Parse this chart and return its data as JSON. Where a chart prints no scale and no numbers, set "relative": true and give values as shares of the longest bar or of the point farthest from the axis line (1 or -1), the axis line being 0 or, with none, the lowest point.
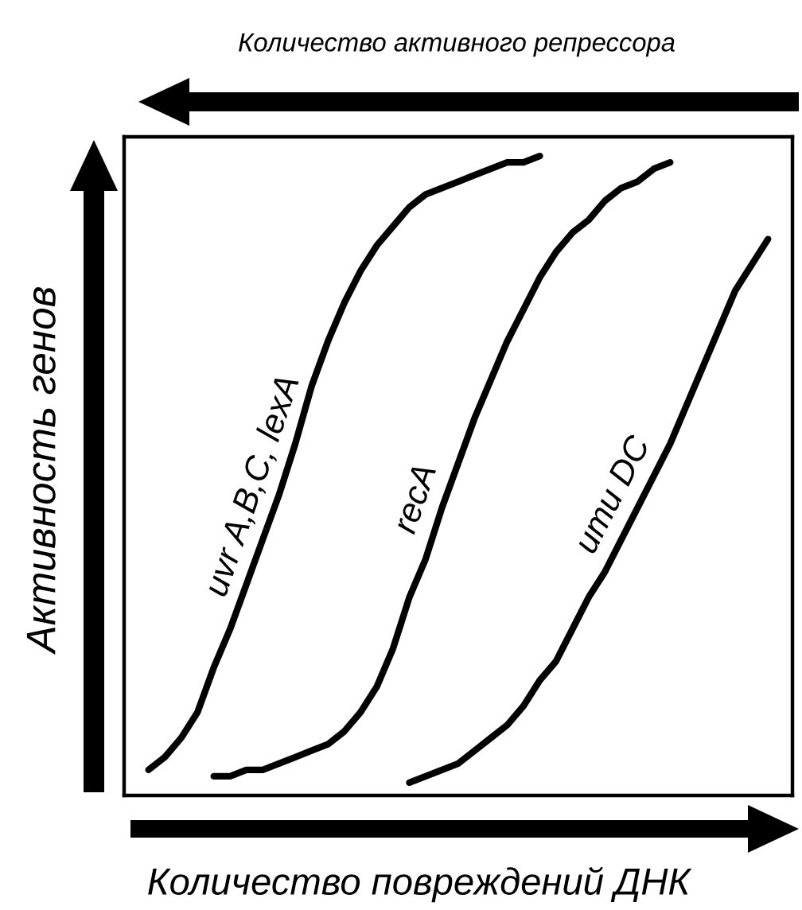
{
  "chart_data": {
    "type": "line",
    "relative": true,
    "xlabel": "Количество повреждений ДНК",
    "ylabel": "Активность генов",
    "x2label": "Количество активного репрессора",
    "categories": [
      null,
      null,
      null,
      null,
      null,
      null,
      null,
      null,
      null,
      null,
      null,
      null,
      null,
      null,
      null,
      null,
      null,
      null,
      null,
      null,
      null,
      null,
      null,
      null,
      null,
      null,
      null,
      null,
      null,
      null,
      null,
      null,
      null,
      null,
      null,
      null,
      null,
      null,
      null,
      null,
      null
    ],
    "series": [
      {
        "name": "uvr A,B,C, lexA",
        "color": "#000000",
        "values": [
          null,
          0.04,
          0.06,
          0.09,
          0.13,
          0.2,
          0.26,
          0.33,
          0.4,
          0.47,
          0.55,
          0.64,
          0.71,
          0.77,
          0.82,
          0.86,
          0.89,
          0.92,
          0.94,
          0.95,
          0.96,
          0.97,
          0.98,
          0.99,
          0.99,
          1.0,
          null,
          null,
          null,
          null,
          null,
          null,
          null,
          null,
          null,
          null,
          null,
          null,
          null,
          null,
          null
        ]
      },
      {
        "name": "recA",
        "color": "#000000",
        "values": [
          null,
          null,
          null,
          null,
          null,
          0.03,
          0.03,
          0.04,
          0.04,
          0.05,
          0.06,
          0.07,
          0.08,
          0.1,
          0.13,
          0.17,
          0.23,
          0.31,
          0.37,
          0.45,
          0.52,
          0.59,
          0.65,
          0.71,
          0.76,
          0.81,
          0.85,
          0.88,
          0.9,
          0.93,
          0.95,
          0.96,
          0.98,
          0.99,
          null,
          null,
          null,
          null,
          null,
          null,
          null
        ]
      },
      {
        "name": "umu DC",
        "color": "#000000",
        "values": [
          null,
          null,
          null,
          null,
          null,
          null,
          null,
          null,
          null,
          null,
          null,
          null,
          null,
          null,
          null,
          null,
          null,
          0.02,
          0.03,
          0.04,
          0.05,
          0.07,
          0.09,
          0.11,
          0.14,
          0.18,
          0.21,
          0.26,
          0.31,
          0.35,
          0.4,
          0.45,
          0.5,
          0.55,
          0.61,
          0.67,
          0.73,
          0.79,
          0.83,
          0.87,
          null
        ]
      }
    ]
  }
}
